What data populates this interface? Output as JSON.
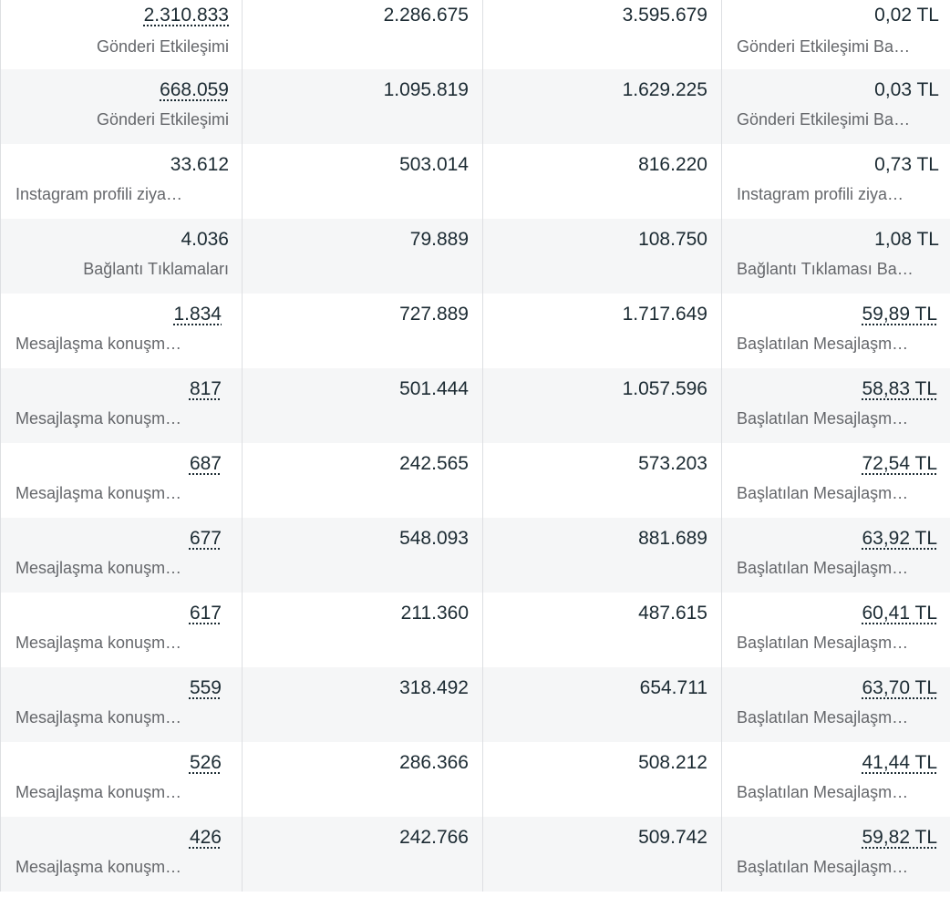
{
  "rows": [
    {
      "results": "2.310.833",
      "results_dotted": true,
      "result_type": "Gönderi Etkileşimi",
      "reach": "2.286.675",
      "impressions": "3.595.679",
      "cost": "0,02 TL",
      "cost_dotted": false,
      "cost_type": "Gönderi Etkileşimi Ba…"
    },
    {
      "results": "668.059",
      "results_dotted": true,
      "result_type": "Gönderi Etkileşimi",
      "reach": "1.095.819",
      "impressions": "1.629.225",
      "cost": "0,03 TL",
      "cost_dotted": false,
      "cost_type": "Gönderi Etkileşimi Ba…"
    },
    {
      "results": "33.612",
      "results_dotted": false,
      "result_type": "Instagram profili ziya…",
      "reach": "503.014",
      "impressions": "816.220",
      "cost": "0,73 TL",
      "cost_dotted": false,
      "cost_type": "Instagram profili ziya…"
    },
    {
      "results": "4.036",
      "results_dotted": false,
      "result_type": "Bağlantı Tıklamaları",
      "reach": "79.889",
      "impressions": "108.750",
      "cost": "1,08 TL",
      "cost_dotted": false,
      "cost_type": "Bağlantı Tıklaması Ba…"
    },
    {
      "results": "1.834",
      "results_dotted": true,
      "result_type": "Mesajlaşma konuşm…",
      "reach": "727.889",
      "impressions": "1.717.649",
      "cost": "59,89 TL",
      "cost_dotted": true,
      "cost_type": "Başlatılan Mesajlaşm…"
    },
    {
      "results": "817",
      "results_dotted": true,
      "result_type": "Mesajlaşma konuşm…",
      "reach": "501.444",
      "impressions": "1.057.596",
      "cost": "58,83 TL",
      "cost_dotted": true,
      "cost_type": "Başlatılan Mesajlaşm…"
    },
    {
      "results": "687",
      "results_dotted": true,
      "result_type": "Mesajlaşma konuşm…",
      "reach": "242.565",
      "impressions": "573.203",
      "cost": "72,54 TL",
      "cost_dotted": true,
      "cost_type": "Başlatılan Mesajlaşm…"
    },
    {
      "results": "677",
      "results_dotted": true,
      "result_type": "Mesajlaşma konuşm…",
      "reach": "548.093",
      "impressions": "881.689",
      "cost": "63,92 TL",
      "cost_dotted": true,
      "cost_type": "Başlatılan Mesajlaşm…"
    },
    {
      "results": "617",
      "results_dotted": true,
      "result_type": "Mesajlaşma konuşm…",
      "reach": "211.360",
      "impressions": "487.615",
      "cost": "60,41 TL",
      "cost_dotted": true,
      "cost_type": "Başlatılan Mesajlaşm…"
    },
    {
      "results": "559",
      "results_dotted": true,
      "result_type": "Mesajlaşma konuşm…",
      "reach": "318.492",
      "impressions": "654.711",
      "cost": "63,70 TL",
      "cost_dotted": true,
      "cost_type": "Başlatılan Mesajlaşm…"
    },
    {
      "results": "526",
      "results_dotted": true,
      "result_type": "Mesajlaşma konuşm…",
      "reach": "286.366",
      "impressions": "508.212",
      "cost": "41,44 TL",
      "cost_dotted": true,
      "cost_type": "Başlatılan Mesajlaşm…"
    },
    {
      "results": "426",
      "results_dotted": true,
      "result_type": "Mesajlaşma konuşm…",
      "reach": "242.766",
      "impressions": "509.742",
      "cost": "59,82 TL",
      "cost_dotted": true,
      "cost_type": "Başlatılan Mesajlaşm…"
    }
  ]
}
